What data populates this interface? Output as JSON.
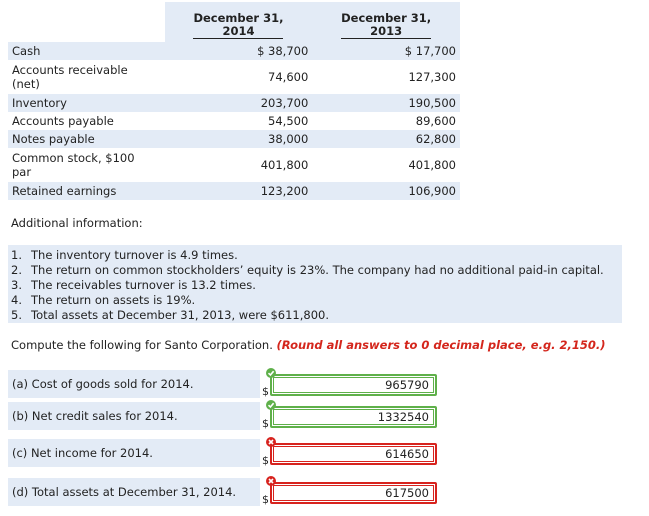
{
  "table": {
    "headers": [
      "December 31,\n2014",
      "December 31,\n2013"
    ],
    "rows": [
      [
        "Cash",
        "$ 38,700",
        "$ 17,700"
      ],
      [
        "Accounts receivable\n(net)",
        "74,600",
        "127,300"
      ],
      [
        "Inventory",
        "203,700",
        "190,500"
      ],
      [
        "Accounts payable",
        "54,500",
        "89,600"
      ],
      [
        "Notes payable",
        "38,000",
        "62,800"
      ],
      [
        "Common stock, $100\npar",
        "401,800",
        "401,800"
      ],
      [
        "Retained earnings",
        "123,200",
        "106,900"
      ]
    ]
  },
  "additional_information": {
    "title": "Additional information:",
    "items": [
      [
        "1.",
        "The inventory turnover is 4.9 times."
      ],
      [
        "2.",
        "The return on common stockholders’ equity is 23%. The company had no additional paid-in capital."
      ],
      [
        "3.",
        "The receivables turnover is 13.2 times."
      ],
      [
        "4.",
        "The return on assets is 19%."
      ],
      [
        "5.",
        "Total assets at December 31, 2013, were $611,800."
      ]
    ]
  },
  "prompt": {
    "text": "Compute the following for Santo Corporation.",
    "instruction": "(Round all answers to 0 decimal place, e.g. 2,150.)"
  },
  "questions": [
    {
      "label": "(a)  Cost of goods sold for 2014.",
      "currency": "$",
      "answer": "965790",
      "status": "correct"
    },
    {
      "label": "(b)  Net credit sales for 2014.",
      "currency": "$",
      "answer": "1332540",
      "status": "correct"
    },
    {
      "label": "(c)  Net income for 2014.",
      "currency": "$",
      "answer": "614650",
      "status": "incorrect"
    },
    {
      "label": "(d)  Total assets at December 31, 2014.",
      "currency": "$",
      "answer": "617500",
      "status": "incorrect"
    }
  ]
}
